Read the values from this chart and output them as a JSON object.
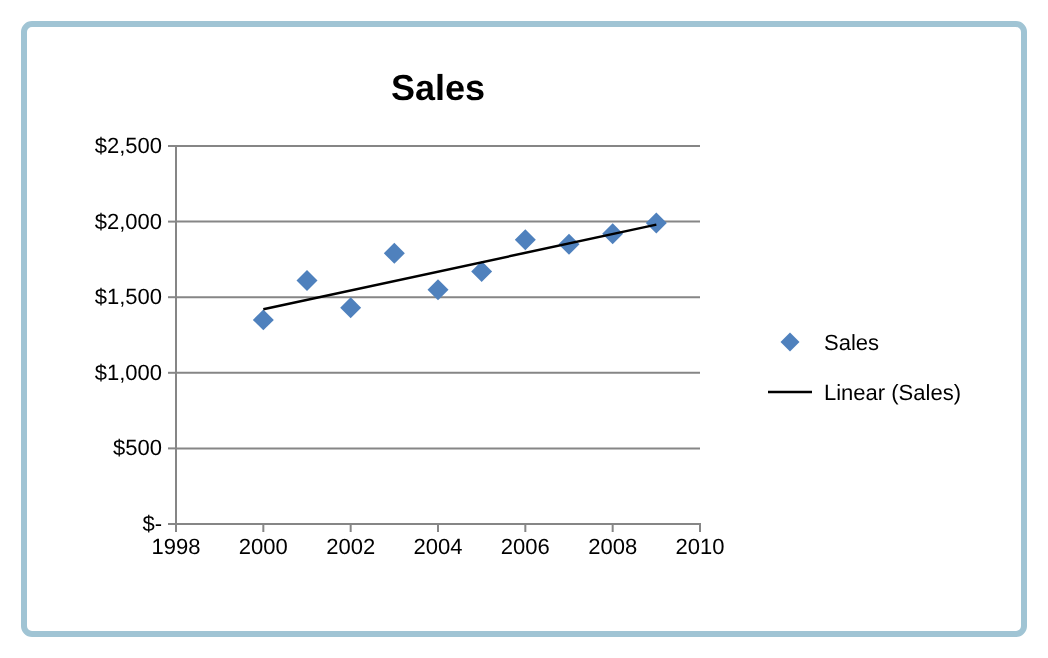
{
  "chart_data": {
    "type": "scatter",
    "title": "Sales",
    "x": [
      2000,
      2001,
      2002,
      2003,
      2004,
      2005,
      2006,
      2007,
      2008,
      2009
    ],
    "series": [
      {
        "name": "Sales",
        "color": "#4f81bd",
        "marker": "diamond",
        "values": [
          1350,
          1610,
          1430,
          1790,
          1550,
          1670,
          1880,
          1850,
          1920,
          1990
        ]
      },
      {
        "name": "Linear (Sales)",
        "type": "line",
        "color": "#000000",
        "marker": "none",
        "x": [
          2000,
          2009
        ],
        "values": [
          1420,
          1980
        ]
      }
    ],
    "xlim": [
      1998,
      2010
    ],
    "xticks": [
      1998,
      2000,
      2002,
      2004,
      2006,
      2008,
      2010
    ],
    "ylim": [
      0,
      2500
    ],
    "yticks": [
      {
        "value": 0,
        "label": "$-"
      },
      {
        "value": 500,
        "label": "$500"
      },
      {
        "value": 1000,
        "label": "$1,000"
      },
      {
        "value": 1500,
        "label": "$1,500"
      },
      {
        "value": 2000,
        "label": "$2,000"
      },
      {
        "value": 2500,
        "label": "$2,500"
      }
    ],
    "grid": "y",
    "legend": "right"
  }
}
